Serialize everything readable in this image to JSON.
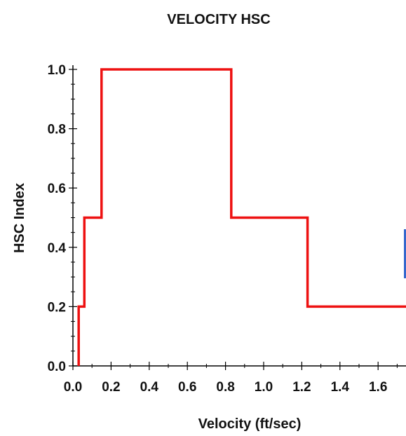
{
  "chart_data": {
    "type": "line",
    "title": "VELOCITY HSC",
    "xlabel": "Velocity (ft/sec)",
    "ylabel": "HSC Index",
    "xlim": [
      0.0,
      1.75
    ],
    "ylim": [
      0.0,
      1.0
    ],
    "xticks": [
      "0.0",
      "0.2",
      "0.4",
      "0.6",
      "0.8",
      "1.0",
      "1.2",
      "1.4",
      "1.6"
    ],
    "yticks": [
      "0.0",
      "0.2",
      "0.4",
      "0.6",
      "0.8",
      "1.0"
    ],
    "grid": false,
    "legend": "none",
    "series": [
      {
        "color": "#ee1111",
        "x": [
          0.03,
          0.03,
          0.06,
          0.06,
          0.15,
          0.15,
          0.83,
          0.83,
          1.23,
          1.23,
          1.75
        ],
        "y": [
          0.0,
          0.2,
          0.2,
          0.5,
          0.5,
          1.0,
          1.0,
          0.5,
          0.5,
          0.2,
          0.2
        ]
      }
    ]
  }
}
